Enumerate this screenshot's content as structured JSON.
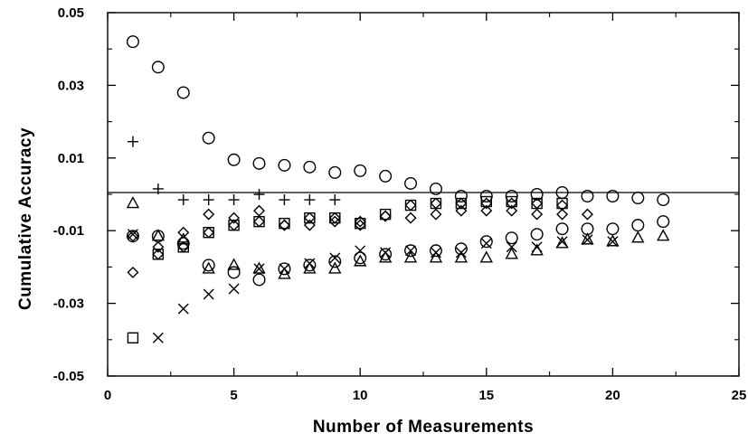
{
  "chart_data": {
    "type": "scatter",
    "title": "",
    "xlabel": "Number of Measurements",
    "ylabel": "Cumulative Accuracy",
    "xlim": [
      0,
      25
    ],
    "ylim": [
      -0.05,
      0.05
    ],
    "x_ticks": [
      0,
      5,
      10,
      15,
      20,
      25
    ],
    "x_tick_labels": [
      "0",
      "5",
      "10",
      "15",
      "20",
      "25"
    ],
    "y_ticks": [
      -0.05,
      -0.03,
      -0.01,
      0.01,
      0.03,
      0.05
    ],
    "y_tick_labels": [
      "-0.05",
      "-0.03",
      "-0.01",
      "0.01",
      "0.03",
      "0.05"
    ],
    "grid": false,
    "legend": "none",
    "reference_line_y": 0.0005,
    "series": [
      {
        "marker": "circle",
        "points": [
          [
            1,
            0.042
          ],
          [
            2,
            0.035
          ],
          [
            3,
            0.028
          ],
          [
            4,
            0.0155
          ],
          [
            5,
            0.0095
          ],
          [
            6,
            0.0085
          ],
          [
            7,
            0.008
          ],
          [
            8,
            0.0075
          ],
          [
            9,
            0.006
          ],
          [
            10,
            0.0065
          ],
          [
            11,
            0.005
          ],
          [
            12,
            0.003
          ],
          [
            13,
            0.0015
          ],
          [
            14,
            -0.0005
          ],
          [
            15,
            -0.0005
          ],
          [
            16,
            -0.0005
          ],
          [
            17,
            0.0
          ],
          [
            18,
            0.0005
          ],
          [
            19,
            -0.0005
          ],
          [
            20,
            -0.0005
          ],
          [
            21,
            -0.001
          ],
          [
            22,
            -0.0015
          ]
        ]
      },
      {
        "marker": "circle",
        "points": [
          [
            1,
            -0.0115
          ],
          [
            2,
            -0.0115
          ],
          [
            3,
            -0.0135
          ],
          [
            4,
            -0.0195
          ],
          [
            5,
            -0.0215
          ],
          [
            6,
            -0.0235
          ],
          [
            7,
            -0.0205
          ],
          [
            8,
            -0.0195
          ],
          [
            9,
            -0.0185
          ],
          [
            10,
            -0.0175
          ],
          [
            11,
            -0.0165
          ],
          [
            12,
            -0.0155
          ],
          [
            13,
            -0.0155
          ],
          [
            14,
            -0.015
          ],
          [
            15,
            -0.013
          ],
          [
            16,
            -0.012
          ],
          [
            17,
            -0.011
          ],
          [
            18,
            -0.0095
          ],
          [
            19,
            -0.0095
          ],
          [
            20,
            -0.0095
          ],
          [
            21,
            -0.0085
          ],
          [
            22,
            -0.0075
          ]
        ]
      },
      {
        "marker": "plus",
        "points": [
          [
            1,
            0.0145
          ],
          [
            2,
            0.0015
          ],
          [
            3,
            -0.0015
          ],
          [
            4,
            -0.0015
          ],
          [
            5,
            -0.0015
          ],
          [
            6,
            0.0
          ],
          [
            7,
            -0.0015
          ],
          [
            8,
            -0.0015
          ],
          [
            9,
            -0.0015
          ]
        ]
      },
      {
        "marker": "triangle",
        "points": [
          [
            1,
            -0.0025
          ],
          [
            2,
            -0.0115
          ],
          [
            3,
            -0.0125
          ],
          [
            4,
            -0.0205
          ],
          [
            5,
            -0.0195
          ],
          [
            6,
            -0.0205
          ],
          [
            7,
            -0.022
          ],
          [
            8,
            -0.0205
          ],
          [
            9,
            -0.0205
          ],
          [
            10,
            -0.0185
          ],
          [
            11,
            -0.0175
          ],
          [
            12,
            -0.0175
          ],
          [
            13,
            -0.0175
          ],
          [
            14,
            -0.0175
          ],
          [
            15,
            -0.0175
          ],
          [
            16,
            -0.0165
          ],
          [
            17,
            -0.0155
          ],
          [
            18,
            -0.0135
          ],
          [
            19,
            -0.0125
          ],
          [
            20,
            -0.013
          ],
          [
            21,
            -0.012
          ],
          [
            22,
            -0.0115
          ]
        ]
      },
      {
        "marker": "diamond",
        "points": [
          [
            1,
            -0.0115
          ],
          [
            2,
            -0.0145
          ],
          [
            3,
            -0.0105
          ],
          [
            4,
            -0.0055
          ],
          [
            5,
            -0.0065
          ],
          [
            6,
            -0.0045
          ],
          [
            7,
            -0.0085
          ],
          [
            8,
            -0.0085
          ],
          [
            9,
            -0.0075
          ],
          [
            10,
            -0.0085
          ],
          [
            11,
            -0.006
          ],
          [
            12,
            -0.0065
          ],
          [
            13,
            -0.0055
          ],
          [
            14,
            -0.0045
          ],
          [
            15,
            -0.0045
          ],
          [
            16,
            -0.0045
          ],
          [
            17,
            -0.0055
          ],
          [
            18,
            -0.0055
          ],
          [
            19,
            -0.0055
          ]
        ]
      },
      {
        "marker": "diamond",
        "points": [
          [
            1,
            -0.0215
          ],
          [
            2,
            -0.0165
          ],
          [
            3,
            -0.0145
          ],
          [
            4,
            -0.0105
          ],
          [
            5,
            -0.0085
          ],
          [
            6,
            -0.0075
          ],
          [
            7,
            -0.0085
          ],
          [
            8,
            -0.0065
          ],
          [
            9,
            -0.0065
          ],
          [
            10,
            -0.0075
          ],
          [
            11,
            -0.006
          ],
          [
            12,
            -0.003
          ],
          [
            13,
            -0.0025
          ],
          [
            14,
            -0.0025
          ],
          [
            15,
            -0.0025
          ],
          [
            16,
            -0.0025
          ],
          [
            17,
            -0.0025
          ],
          [
            18,
            -0.003
          ]
        ]
      },
      {
        "marker": "square",
        "points": [
          [
            1,
            -0.0395
          ],
          [
            2,
            -0.0165
          ],
          [
            3,
            -0.0145
          ],
          [
            4,
            -0.0105
          ],
          [
            5,
            -0.0085
          ],
          [
            6,
            -0.0075
          ],
          [
            7,
            -0.008
          ],
          [
            8,
            -0.0065
          ],
          [
            9,
            -0.0065
          ],
          [
            10,
            -0.008
          ],
          [
            11,
            -0.0055
          ],
          [
            12,
            -0.003
          ],
          [
            13,
            -0.0025
          ],
          [
            14,
            -0.0025
          ],
          [
            15,
            -0.002
          ],
          [
            16,
            -0.002
          ],
          [
            17,
            -0.0025
          ],
          [
            18,
            -0.0025
          ]
        ]
      },
      {
        "marker": "cross",
        "points": [
          [
            1,
            -0.011
          ],
          [
            2,
            -0.0395
          ],
          [
            3,
            -0.0315
          ],
          [
            4,
            -0.0275
          ],
          [
            5,
            -0.026
          ],
          [
            6,
            -0.0205
          ],
          [
            7,
            -0.0205
          ],
          [
            8,
            -0.019
          ],
          [
            9,
            -0.0175
          ],
          [
            10,
            -0.0155
          ],
          [
            11,
            -0.016
          ],
          [
            12,
            -0.0155
          ],
          [
            13,
            -0.016
          ],
          [
            14,
            -0.016
          ],
          [
            15,
            -0.0135
          ],
          [
            16,
            -0.0145
          ],
          [
            17,
            -0.0145
          ],
          [
            18,
            -0.013
          ],
          [
            19,
            -0.0125
          ],
          [
            20,
            -0.013
          ]
        ]
      }
    ]
  }
}
